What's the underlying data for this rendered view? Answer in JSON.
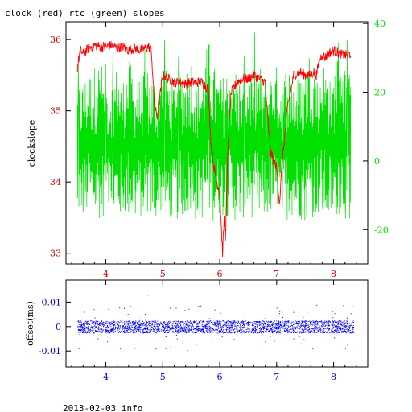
{
  "title": "clock (red) rtc (green) slopes",
  "footer": "2013-02-03 info",
  "colors": {
    "clock": "#ff0000",
    "rtc": "#00e000",
    "offset": "#0000ff",
    "top_left_axis": "#cc0000",
    "top_right_axis": "#00dd00",
    "bottom_axis": "#0000cc"
  },
  "chart_data": [
    {
      "type": "line",
      "title": "clock (red) rtc (green) slopes",
      "xlabel": "",
      "ylabel": "clockslope",
      "xlim": [
        3.3,
        8.6
      ],
      "ylim": [
        32.85,
        36.25
      ],
      "y2lim": [
        -30,
        40.5
      ],
      "x_ticks": [
        4,
        5,
        6,
        7,
        8
      ],
      "x_tick_labels": [
        "4",
        "5",
        "6",
        "7",
        "8"
      ],
      "y_ticks": [
        33,
        34,
        35,
        36
      ],
      "y_tick_labels": [
        "33",
        "34",
        "35",
        "36"
      ],
      "y2_ticks": [
        -20,
        0,
        20,
        40
      ],
      "y2_tick_labels": [
        "-20",
        "0",
        "20",
        "40"
      ],
      "grid": false,
      "series": [
        {
          "name": "clock",
          "axis": "left",
          "x": [
            3.5,
            3.55,
            3.6,
            3.7,
            3.8,
            3.9,
            4.0,
            4.1,
            4.2,
            4.3,
            4.4,
            4.5,
            4.6,
            4.7,
            4.75,
            4.8,
            4.85,
            4.9,
            5.0,
            5.1,
            5.2,
            5.3,
            5.4,
            5.5,
            5.6,
            5.7,
            5.75,
            5.8,
            5.85,
            5.9,
            5.95,
            6.0,
            6.05,
            6.08,
            6.1,
            6.15,
            6.2,
            6.3,
            6.4,
            6.5,
            6.6,
            6.7,
            6.8,
            6.85,
            6.9,
            6.95,
            7.0,
            7.05,
            7.1,
            7.2,
            7.3,
            7.4,
            7.5,
            7.6,
            7.65,
            7.7,
            7.75,
            7.8,
            7.85,
            7.9,
            8.0,
            8.1,
            8.2,
            8.3
          ],
          "y": [
            35.6,
            35.85,
            35.8,
            35.88,
            35.92,
            35.9,
            35.9,
            35.92,
            35.88,
            35.9,
            35.85,
            35.88,
            35.85,
            35.88,
            35.9,
            35.85,
            35.1,
            34.9,
            35.5,
            35.45,
            35.4,
            35.4,
            35.38,
            35.4,
            35.4,
            35.4,
            35.35,
            35.3,
            34.5,
            34.2,
            34.0,
            33.85,
            33.0,
            33.5,
            33.2,
            34.6,
            35.25,
            35.4,
            35.45,
            35.45,
            35.5,
            35.45,
            35.4,
            34.8,
            34.4,
            34.3,
            34.2,
            33.7,
            34.3,
            35.1,
            35.5,
            35.55,
            35.5,
            35.5,
            35.55,
            35.5,
            35.7,
            35.8,
            35.75,
            35.8,
            35.85,
            35.8,
            35.78,
            35.8
          ]
        },
        {
          "name": "rtc",
          "axis": "right",
          "x": [
            3.5,
            3.6,
            3.7,
            3.8,
            3.9,
            4.0,
            4.1,
            4.2,
            4.3,
            4.4,
            4.5,
            4.6,
            4.7,
            4.8,
            4.9,
            5.0,
            5.1,
            5.2,
            5.3,
            5.4,
            5.5,
            5.6,
            5.7,
            5.8,
            5.9,
            6.0,
            6.1,
            6.2,
            6.3,
            6.4,
            6.5,
            6.6,
            6.7,
            6.8,
            6.9,
            7.0,
            7.1,
            7.2,
            7.3,
            7.4,
            7.5,
            7.6,
            7.7,
            7.8,
            7.9,
            8.0,
            8.1,
            8.2,
            8.3
          ],
          "y_low": [
            -16,
            -17,
            -16,
            -18,
            -17,
            -16,
            -17,
            -18,
            -16,
            -17,
            -18,
            -17,
            -16,
            -17,
            -18,
            -16,
            -17,
            -18,
            -17,
            -16,
            -17,
            -18,
            -17,
            -16,
            -18,
            -17,
            -16,
            -17,
            -18,
            -17,
            -16,
            -17,
            -18,
            -17,
            -16,
            -17,
            -18,
            -17,
            -16,
            -17,
            -18,
            -17,
            -16,
            -17,
            -18,
            -17,
            -16,
            -17,
            -18
          ],
          "y_high": [
            22,
            24,
            26,
            28,
            30,
            24,
            26,
            28,
            24,
            30,
            26,
            24,
            28,
            26,
            24,
            30,
            26,
            24,
            28,
            26,
            32,
            24,
            26,
            36,
            28,
            24,
            26,
            30,
            28,
            24,
            26,
            30,
            28,
            24,
            26,
            28,
            24,
            30,
            26,
            24,
            28,
            34,
            26,
            30,
            28,
            26,
            38,
            28,
            30
          ]
        }
      ]
    },
    {
      "type": "scatter",
      "title": "",
      "xlabel": "",
      "ylabel": "offset(ms)",
      "xlim": [
        3.3,
        8.6
      ],
      "ylim": [
        -0.0165,
        0.019
      ],
      "x_ticks": [
        4,
        5,
        6,
        7,
        8
      ],
      "x_tick_labels": [
        "4",
        "5",
        "6",
        "7",
        "8"
      ],
      "y_ticks": [
        -0.01,
        0,
        0.01
      ],
      "y_tick_labels": [
        "-0.01",
        "0",
        "0.01"
      ],
      "grid": false,
      "series": [
        {
          "name": "offset",
          "x_range": [
            3.5,
            8.35
          ],
          "band_y": [
            -0.0025,
            0.0025
          ],
          "outlier_y": [
            -0.011,
            0.018
          ]
        }
      ]
    }
  ]
}
